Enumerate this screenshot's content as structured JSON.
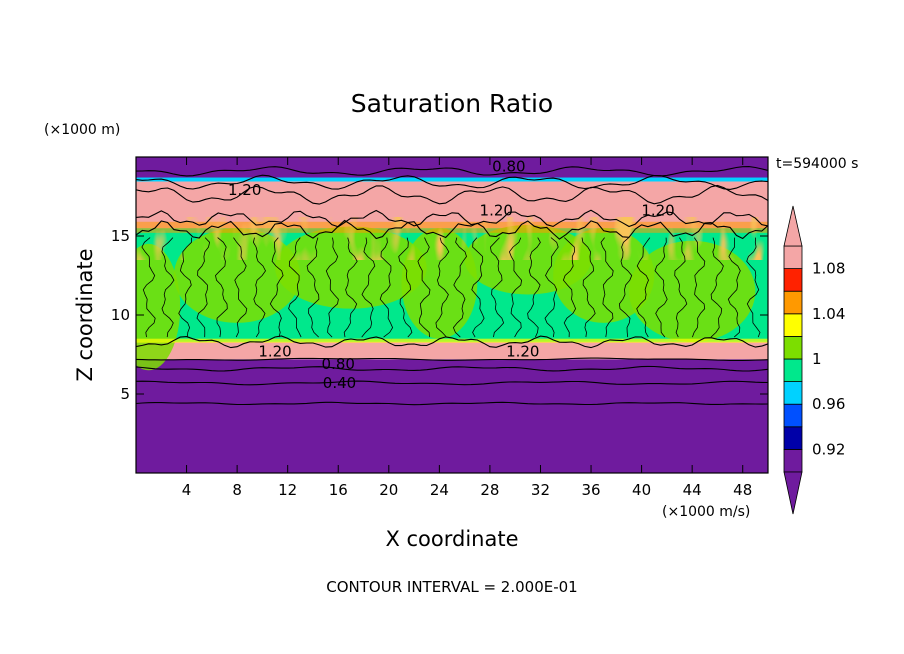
{
  "chart_data": {
    "type": "heatmap",
    "title": "Saturation Ratio",
    "xlabel": "X coordinate",
    "ylabel": "Z coordinate",
    "x_unit": "(×1000 m/s)",
    "y_unit": "(×1000 m)",
    "time_label": "t=594000 s",
    "footer": "CONTOUR INTERVAL = 2.000E-01",
    "xlim": [
      0,
      50
    ],
    "ylim": [
      0,
      20
    ],
    "x_ticks": [
      4,
      8,
      12,
      16,
      20,
      24,
      28,
      32,
      36,
      40,
      44,
      48
    ],
    "y_ticks": [
      5,
      10,
      15
    ],
    "colorbar": {
      "levels": [
        0.9,
        0.92,
        0.94,
        0.96,
        0.98,
        1.0,
        1.02,
        1.04,
        1.06,
        1.08,
        1.1
      ],
      "tick_labels": [
        {
          "value": 0.92,
          "label": "0.92"
        },
        {
          "value": 0.96,
          "label": "0.96"
        },
        {
          "value": 1.0,
          "label": "1"
        },
        {
          "value": 1.04,
          "label": "1.04"
        },
        {
          "value": 1.08,
          "label": "1.08"
        }
      ],
      "colors": [
        "#6f1b9e",
        "#0000a8",
        "#0050ff",
        "#00d2ff",
        "#00e88c",
        "#7cde00",
        "#ffff00",
        "#ff9900",
        "#ff2200",
        "#f4a6a6"
      ],
      "below_color": "#6f1b9e",
      "above_color": "#f4a6a6"
    },
    "regions": [
      {
        "z_from": 0,
        "z_to": 7.2,
        "value_class": "<0.90",
        "color": "#6f1b9e"
      },
      {
        "z_from": 7.2,
        "z_to": 8.3,
        "value_class": ">1.10",
        "color": "#f4a6a6"
      },
      {
        "z_from": 8.3,
        "z_to": 15.5,
        "value_class": "0.98-1.02",
        "color": "#00e88c"
      },
      {
        "z_from": 15.5,
        "z_to": 18.5,
        "value_class": ">1.10",
        "color": "#f4a6a6"
      },
      {
        "z_from": 18.5,
        "z_to": 20,
        "value_class": "<0.90",
        "color": "#6f1b9e"
      }
    ],
    "contour_labels": [
      {
        "text": "0.80",
        "x": 29.5,
        "z": 19.4
      },
      {
        "text": "1.20",
        "x": 8.6,
        "z": 17.9
      },
      {
        "text": "1.20",
        "x": 28.5,
        "z": 16.6
      },
      {
        "text": "1.20",
        "x": 41.3,
        "z": 16.6
      },
      {
        "text": "1.20",
        "x": 11.0,
        "z": 7.7
      },
      {
        "text": "1.20",
        "x": 30.6,
        "z": 7.7
      },
      {
        "text": "0.80",
        "x": 16.0,
        "z": 6.9
      },
      {
        "text": "0.40",
        "x": 16.1,
        "z": 5.7
      }
    ]
  }
}
